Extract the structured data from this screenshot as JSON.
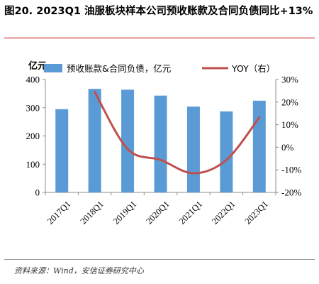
{
  "figure": {
    "title": "图20. 2023Q1 油服板块样本公司预收账款及合同负债同比+13%",
    "source": "资料来源：Wind，安信证券研究中心"
  },
  "chart_data": {
    "type": "bar+line",
    "categories": [
      "2017Q1",
      "2018Q1",
      "2019Q1",
      "2020Q1",
      "2021Q1",
      "2022Q1",
      "2023Q1"
    ],
    "left_axis_unit": "亿元",
    "ylim": [
      0,
      400
    ],
    "yticks": [
      0,
      100,
      200,
      300,
      400
    ],
    "y2lim": [
      -20,
      30
    ],
    "y2ticks": [
      -20,
      -10,
      0,
      10,
      20,
      30
    ],
    "y2tick_labels": [
      "-20%",
      "-10%",
      "0%",
      "10%",
      "20%",
      "30%"
    ],
    "legend_position": "top",
    "grid": false,
    "series": [
      {
        "name": "预收账款&合同负债，亿元",
        "type": "bar",
        "axis": "left",
        "color": "#5b9bd5",
        "values": [
          295,
          367,
          364,
          343,
          304,
          287,
          325
        ]
      },
      {
        "name": "YOY（右）",
        "type": "line",
        "axis": "right",
        "color": "#c0504d",
        "values": [
          null,
          24.5,
          -0.8,
          -5.6,
          -11.5,
          -5.6,
          13.2
        ]
      }
    ]
  }
}
